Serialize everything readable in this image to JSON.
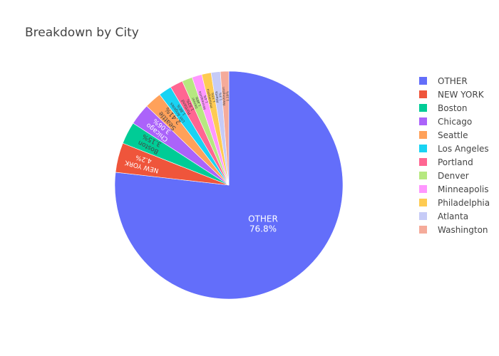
{
  "chart_data": {
    "type": "pie",
    "title": "Breakdown by City",
    "legend_position": "right",
    "categories": [
      "OTHER",
      "NEW YORK",
      "Boston",
      "Chicago",
      "Seattle",
      "Los Angeles",
      "Portland",
      "Denver",
      "Minneapolis",
      "Philadelphia",
      "Atlanta",
      "Washington"
    ],
    "values": [
      76.8,
      4.2,
      3.15,
      3.06,
      2.41,
      1.86,
      1.82,
      1.48,
      1.4,
      1.33,
      1.3,
      1.19
    ],
    "slice_labels": [
      "76.8%",
      "4.2%",
      "3.15%",
      "3.06%",
      "2.41%",
      "1.86%",
      "1.82%",
      "1.48%",
      "1.4%",
      "1.33%",
      "1.3%",
      "1.19%"
    ],
    "colors": [
      "#636efa",
      "#ef553b",
      "#00cc96",
      "#ab63fa",
      "#ffa15a",
      "#19d3f3",
      "#ff6692",
      "#b6e880",
      "#ff97ff",
      "#fecb52",
      "#c6cbf7",
      "#f5ab9a"
    ]
  }
}
